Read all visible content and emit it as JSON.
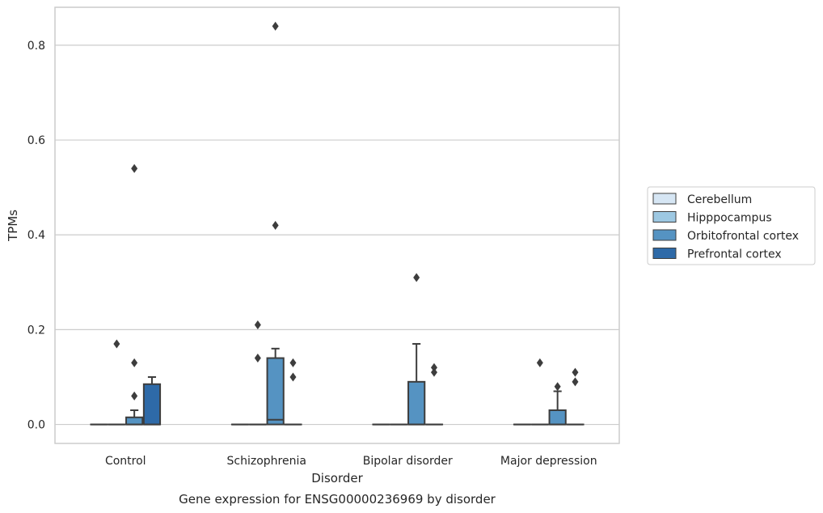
{
  "chart_data": {
    "type": "box",
    "xlabel": "Disorder",
    "ylabel": "TPMs",
    "caption": "Gene expression for ENSG00000236969 by disorder",
    "ylim": [
      -0.04,
      0.88
    ],
    "yticks": [
      "0.0",
      "0.2",
      "0.4",
      "0.6",
      "0.8"
    ],
    "grid": "horizontal",
    "legend_position": "right",
    "categories": [
      "Control",
      "Schizophrenia",
      "Bipolar disorder",
      "Major depression"
    ],
    "series": [
      {
        "name": "Cerebellum",
        "color": "#d6e6f4",
        "boxes": [
          {
            "q1": 0,
            "median": 0,
            "q3": 0,
            "whisker_low": 0,
            "whisker_high": 0,
            "outliers": []
          },
          {
            "q1": 0,
            "median": 0,
            "q3": 0,
            "whisker_low": 0,
            "whisker_high": 0,
            "outliers": []
          },
          {
            "q1": 0,
            "median": 0,
            "q3": 0,
            "whisker_low": 0,
            "whisker_high": 0,
            "outliers": []
          },
          {
            "q1": 0,
            "median": 0,
            "q3": 0,
            "whisker_low": 0,
            "whisker_high": 0,
            "outliers": []
          }
        ]
      },
      {
        "name": "Hipppocampus",
        "color": "#9dc8e2",
        "boxes": [
          {
            "q1": 0,
            "median": 0,
            "q3": 0,
            "whisker_low": 0,
            "whisker_high": 0,
            "outliers": [
              0.17
            ]
          },
          {
            "q1": 0,
            "median": 0,
            "q3": 0,
            "whisker_low": 0,
            "whisker_high": 0,
            "outliers": [
              0.21,
              0.14
            ]
          },
          {
            "q1": 0,
            "median": 0,
            "q3": 0,
            "whisker_low": 0,
            "whisker_high": 0,
            "outliers": []
          },
          {
            "q1": 0,
            "median": 0,
            "q3": 0,
            "whisker_low": 0,
            "whisker_high": 0,
            "outliers": [
              0.13
            ]
          }
        ]
      },
      {
        "name": "Orbitofrontal cortex",
        "color": "#5593c2",
        "boxes": [
          {
            "q1": 0,
            "median": 0,
            "q3": 0.015,
            "whisker_low": 0,
            "whisker_high": 0.03,
            "outliers": [
              0.54,
              0.13,
              0.06
            ]
          },
          {
            "q1": 0,
            "median": 0.01,
            "q3": 0.14,
            "whisker_low": 0,
            "whisker_high": 0.16,
            "outliers": [
              0.84,
              0.42
            ]
          },
          {
            "q1": 0,
            "median": 0,
            "q3": 0.09,
            "whisker_low": 0,
            "whisker_high": 0.17,
            "outliers": [
              0.31
            ]
          },
          {
            "q1": 0,
            "median": 0,
            "q3": 0.03,
            "whisker_low": 0,
            "whisker_high": 0.07,
            "outliers": [
              0.08
            ]
          }
        ]
      },
      {
        "name": "Prefrontal cortex",
        "color": "#2e6aa8",
        "boxes": [
          {
            "q1": 0,
            "median": 0,
            "q3": 0.085,
            "whisker_low": 0,
            "whisker_high": 0.1,
            "outliers": []
          },
          {
            "q1": 0,
            "median": 0,
            "q3": 0,
            "whisker_low": 0,
            "whisker_high": 0,
            "outliers": [
              0.13,
              0.1
            ]
          },
          {
            "q1": 0,
            "median": 0,
            "q3": 0,
            "whisker_low": 0,
            "whisker_high": 0,
            "outliers": [
              0.12,
              0.11
            ]
          },
          {
            "q1": 0,
            "median": 0,
            "q3": 0,
            "whisker_low": 0,
            "whisker_high": 0,
            "outliers": [
              0.11,
              0.09
            ]
          }
        ]
      }
    ]
  }
}
